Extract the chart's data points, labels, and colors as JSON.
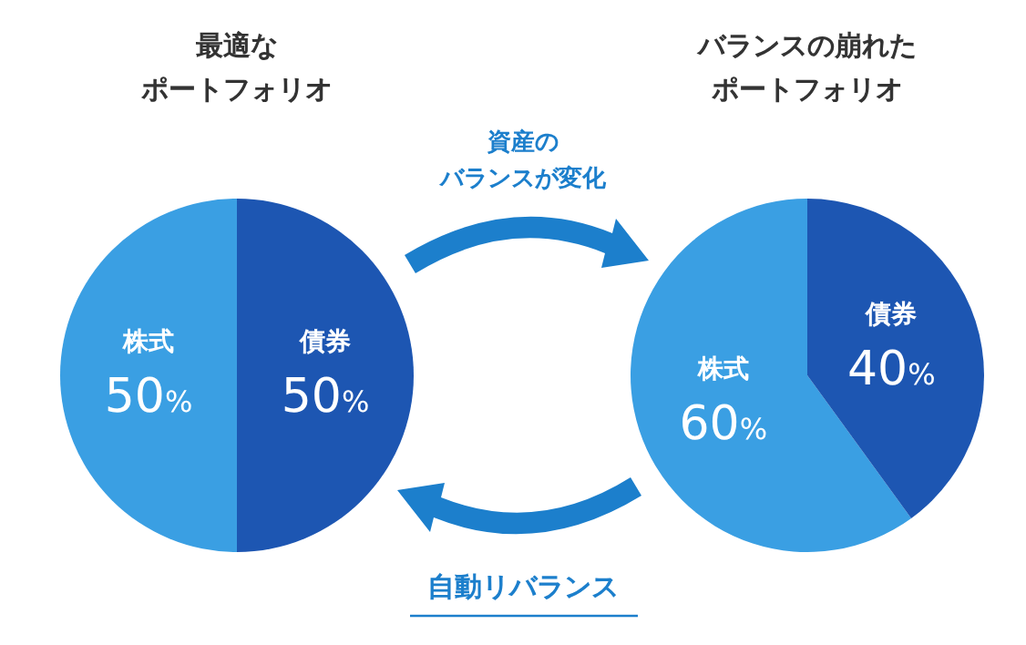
{
  "chart_data": [
    {
      "type": "pie",
      "title": "最適な",
      "subtitle": "ポートフォリオ",
      "categories": [
        "株式",
        "債券"
      ],
      "values": [
        50,
        50
      ],
      "value_labels": [
        "50%",
        "50%"
      ],
      "colors": [
        "#3a9fe3",
        "#1d56b2"
      ],
      "annotations": [
        "資産の",
        "バランスが変化"
      ]
    },
    {
      "type": "pie",
      "title": "バランスの崩れた",
      "subtitle": "ポートフォリオ",
      "categories": [
        "株式",
        "債券"
      ],
      "values": [
        60,
        40
      ],
      "value_labels": [
        "60%",
        "40%"
      ],
      "colors": [
        "#3a9fe3",
        "#1d56b2"
      ],
      "annotations": [
        "自動リバランス"
      ]
    }
  ]
}
